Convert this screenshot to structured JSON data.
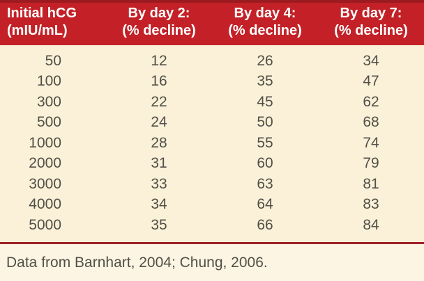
{
  "colors": {
    "top_stripe": "#9c1b20",
    "header_bg": "#c32127",
    "header_text": "#ffffff",
    "body_bg": "#faf1d8",
    "footer_bg": "#fcf5e3",
    "separator": "#a22026",
    "body_text": "#514f47"
  },
  "table": {
    "header": [
      {
        "line1": "Initial hCG",
        "line2": "(mIU/mL)"
      },
      {
        "line1": "By day 2:",
        "line2": "(% decline)"
      },
      {
        "line1": "By day 4:",
        "line2": "(% decline)"
      },
      {
        "line1": "By day 7:",
        "line2": "(% decline)"
      }
    ],
    "rows": [
      [
        "50",
        "12",
        "26",
        "34"
      ],
      [
        "100",
        "16",
        "35",
        "47"
      ],
      [
        "300",
        "22",
        "45",
        "62"
      ],
      [
        "500",
        "24",
        "50",
        "68"
      ],
      [
        "1000",
        "28",
        "55",
        "74"
      ],
      [
        "2000",
        "31",
        "60",
        "79"
      ],
      [
        "3000",
        "33",
        "63",
        "81"
      ],
      [
        "4000",
        "34",
        "64",
        "83"
      ],
      [
        "5000",
        "35",
        "66",
        "84"
      ]
    ]
  },
  "footer": {
    "note": "Data from Barnhart, 2004; Chung, 2006."
  },
  "chart_data": {
    "type": "table",
    "columns": [
      "Initial hCG (mIU/mL)",
      "By day 2: (% decline)",
      "By day 4: (% decline)",
      "By day 7: (% decline)"
    ],
    "initial_hcg": [
      50,
      100,
      300,
      500,
      1000,
      2000,
      3000,
      4000,
      5000
    ],
    "series": [
      {
        "name": "By day 2: (% decline)",
        "values": [
          12,
          16,
          22,
          24,
          28,
          31,
          33,
          34,
          35
        ]
      },
      {
        "name": "By day 4: (% decline)",
        "values": [
          26,
          35,
          45,
          50,
          55,
          60,
          63,
          64,
          66
        ]
      },
      {
        "name": "By day 7: (% decline)",
        "values": [
          34,
          47,
          62,
          68,
          74,
          79,
          81,
          83,
          84
        ]
      }
    ],
    "source_note": "Data from Barnhart, 2004; Chung, 2006."
  }
}
